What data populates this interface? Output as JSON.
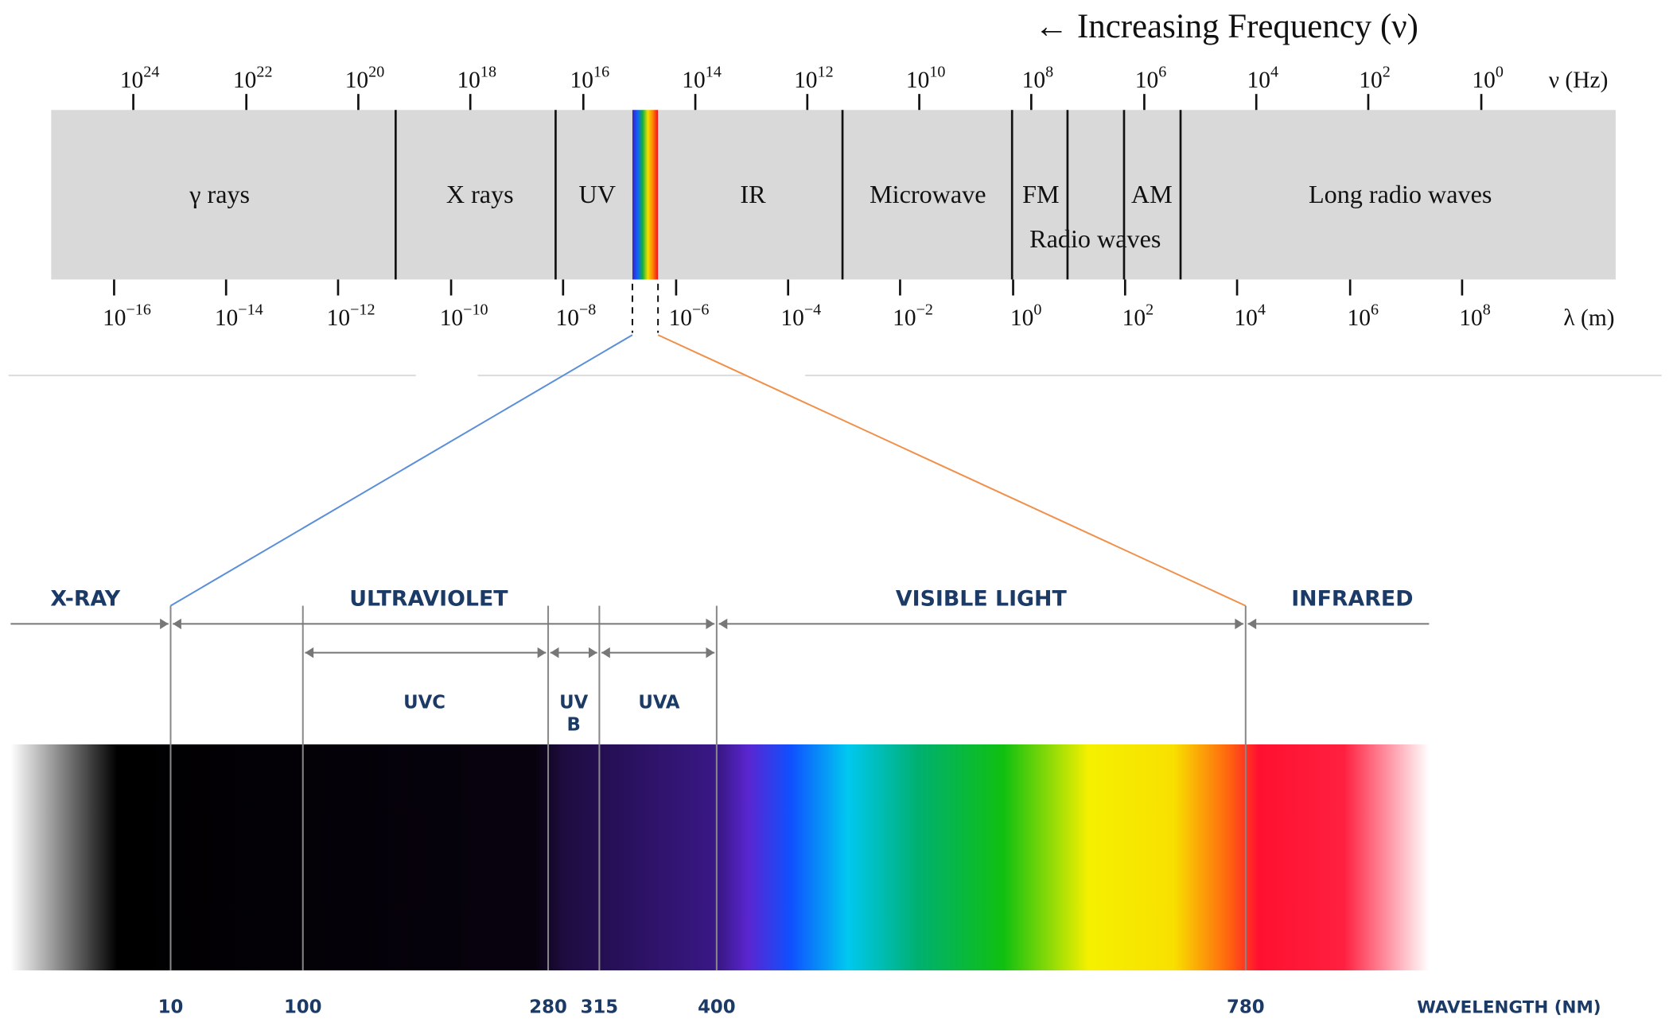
{
  "title": "← Increasing Frequency (ν)",
  "frequency_axis": {
    "unit": "ν (Hz)",
    "ticks": [
      {
        "base": "10",
        "exponent": "24"
      },
      {
        "base": "10",
        "exponent": "22"
      },
      {
        "base": "10",
        "exponent": "20"
      },
      {
        "base": "10",
        "exponent": "18"
      },
      {
        "base": "10",
        "exponent": "16"
      },
      {
        "base": "10",
        "exponent": "14"
      },
      {
        "base": "10",
        "exponent": "12"
      },
      {
        "base": "10",
        "exponent": "10"
      },
      {
        "base": "10",
        "exponent": "8"
      },
      {
        "base": "10",
        "exponent": "6"
      },
      {
        "base": "10",
        "exponent": "4"
      },
      {
        "base": "10",
        "exponent": "2"
      },
      {
        "base": "10",
        "exponent": "0"
      }
    ]
  },
  "wavelength_axis": {
    "unit": "λ (m)",
    "ticks": [
      {
        "base": "10",
        "exponent": "−16"
      },
      {
        "base": "10",
        "exponent": "−14"
      },
      {
        "base": "10",
        "exponent": "−12"
      },
      {
        "base": "10",
        "exponent": "−10"
      },
      {
        "base": "10",
        "exponent": "−8"
      },
      {
        "base": "10",
        "exponent": "−6"
      },
      {
        "base": "10",
        "exponent": "−4"
      },
      {
        "base": "10",
        "exponent": "−2"
      },
      {
        "base": "10",
        "exponent": "0"
      },
      {
        "base": "10",
        "exponent": "2"
      },
      {
        "base": "10",
        "exponent": "4"
      },
      {
        "base": "10",
        "exponent": "6"
      },
      {
        "base": "10",
        "exponent": "8"
      }
    ]
  },
  "bands": [
    "γ rays",
    "X rays",
    "UV",
    "IR",
    "Microwave",
    "FM",
    "AM",
    "Long radio waves"
  ],
  "radio_label": "Radio waves",
  "detail": {
    "regions": [
      "X-RAY",
      "ULTRAVIOLET",
      "VISIBLE LIGHT",
      "INFRARED"
    ],
    "subregions": [
      [
        "UVC"
      ],
      [
        "UV",
        "B"
      ],
      [
        "UVA"
      ]
    ],
    "wavelengths": [
      10,
      100,
      280,
      315,
      400,
      780
    ],
    "axis_label": "WAVELENGTH (NM)"
  }
}
